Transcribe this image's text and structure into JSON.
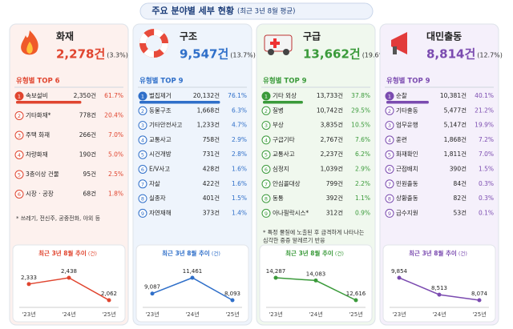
{
  "header": {
    "title": "주요 분야별 세부 현황",
    "subtitle": "(최근 3년 8월 평균)"
  },
  "panels": [
    {
      "name": "화재",
      "total": "2,278건",
      "share": "(3.3%)",
      "color": "#e0452f",
      "tint": "#fdf1ee",
      "top_label": "유형별 TOP 6",
      "rows": [
        {
          "rank": "1",
          "label": "속보설비",
          "count": "2,350건",
          "pct": "61.7%"
        },
        {
          "rank": "2",
          "label": "기타화재*",
          "count": "778건",
          "pct": "20.4%"
        },
        {
          "rank": "3",
          "label": "주택 화재",
          "count": "266건",
          "pct": "7.0%"
        },
        {
          "rank": "4",
          "label": "차량화재",
          "count": "190건",
          "pct": "5.0%"
        },
        {
          "rank": "5",
          "label": "3층이상 건물",
          "count": "95건",
          "pct": "2.5%"
        },
        {
          "rank": "6",
          "label": "시장 · 공장",
          "count": "68건",
          "pct": "1.8%"
        }
      ],
      "note": "* 쓰레기, 전신주, 공중전화, 야외 등",
      "trend": {
        "type": "line",
        "title": "최근 3년 8월 추이",
        "unit": "(건)",
        "categories": [
          "'23년",
          "'24년",
          "'25년"
        ],
        "values": [
          2333,
          2438,
          2062
        ],
        "value_labels": [
          "2,333",
          "2,438",
          "2,062"
        ]
      }
    },
    {
      "name": "구조",
      "total": "9,547건",
      "share": "(13.7%)",
      "color": "#2f6fc9",
      "tint": "#eef4fc",
      "top_label": "유형별 TOP 9",
      "rows": [
        {
          "rank": "1",
          "label": "벌집제거",
          "count": "20,132건",
          "pct": "76.1%"
        },
        {
          "rank": "2",
          "label": "동물구조",
          "count": "1,668건",
          "pct": "6.3%"
        },
        {
          "rank": "3",
          "label": "기타안전사고",
          "count": "1,233건",
          "pct": "4.7%"
        },
        {
          "rank": "4",
          "label": "교통사고",
          "count": "758건",
          "pct": "2.9%"
        },
        {
          "rank": "5",
          "label": "시건개방",
          "count": "731건",
          "pct": "2.8%"
        },
        {
          "rank": "6",
          "label": "E/V사고",
          "count": "428건",
          "pct": "1.6%"
        },
        {
          "rank": "7",
          "label": "자살",
          "count": "422건",
          "pct": "1.6%"
        },
        {
          "rank": "8",
          "label": "실종자",
          "count": "401건",
          "pct": "1.5%"
        },
        {
          "rank": "9",
          "label": "자연재해",
          "count": "373건",
          "pct": "1.4%"
        }
      ],
      "trend": {
        "type": "line",
        "title": "최근 3년 8월 추이",
        "unit": "(건)",
        "categories": [
          "'23년",
          "'24년",
          "'25년"
        ],
        "values": [
          9087,
          11461,
          8093
        ],
        "value_labels": [
          "9,087",
          "11,461",
          "8,093"
        ]
      }
    },
    {
      "name": "구급",
      "total": "13,662건",
      "share": "(19.6%)",
      "color": "#3a9a3a",
      "tint": "#f0f8ee",
      "top_label": "유형별 TOP 9",
      "rows": [
        {
          "rank": "1",
          "label": "기타 외상",
          "count": "13,733건",
          "pct": "37.8%"
        },
        {
          "rank": "2",
          "label": "질병",
          "count": "10,742건",
          "pct": "29.5%"
        },
        {
          "rank": "3",
          "label": "부상",
          "count": "3,835건",
          "pct": "10.5%"
        },
        {
          "rank": "4",
          "label": "구급기타",
          "count": "2,767건",
          "pct": "7.6%"
        },
        {
          "rank": "5",
          "label": "교통사고",
          "count": "2,237건",
          "pct": "6.2%"
        },
        {
          "rank": "6",
          "label": "심정지",
          "count": "1,039건",
          "pct": "2.9%"
        },
        {
          "rank": "7",
          "label": "안심콜대상",
          "count": "799건",
          "pct": "2.2%"
        },
        {
          "rank": "8",
          "label": "동통",
          "count": "392건",
          "pct": "1.1%"
        },
        {
          "rank": "9",
          "label": "아나필락시스*",
          "count": "312건",
          "pct": "0.9%"
        }
      ],
      "note": "* 특정 물질에 노출된 후 급격하게 나타나는 심각한 중증 알레르기 반응",
      "trend": {
        "type": "line",
        "title": "최근 3년 8월 추이",
        "unit": "(건)",
        "categories": [
          "'23년",
          "'24년",
          "'25년"
        ],
        "values": [
          14287,
          14083,
          12616
        ],
        "value_labels": [
          "14,287",
          "14,083",
          "12,616"
        ]
      }
    },
    {
      "name": "대민출동",
      "total": "8,814건",
      "share": "(12.7%)",
      "color": "#7b4bb0",
      "tint": "#f5f0fb",
      "top_label": "유형별 TOP 9",
      "rows": [
        {
          "rank": "1",
          "label": "순찰",
          "count": "10,381건",
          "pct": "40.1%"
        },
        {
          "rank": "2",
          "label": "기타출동",
          "count": "5,477건",
          "pct": "21.2%"
        },
        {
          "rank": "3",
          "label": "업무운행",
          "count": "5,147건",
          "pct": "19.9%"
        },
        {
          "rank": "4",
          "label": "훈련",
          "count": "1,868건",
          "pct": "7.2%"
        },
        {
          "rank": "5",
          "label": "화재확인",
          "count": "1,811건",
          "pct": "7.0%"
        },
        {
          "rank": "6",
          "label": "근접배치",
          "count": "390건",
          "pct": "1.5%"
        },
        {
          "rank": "7",
          "label": "민원출동",
          "count": "84건",
          "pct": "0.3%"
        },
        {
          "rank": "8",
          "label": "상황출동",
          "count": "82건",
          "pct": "0.3%"
        },
        {
          "rank": "9",
          "label": "급수지원",
          "count": "53건",
          "pct": "0.1%"
        }
      ],
      "trend": {
        "type": "line",
        "title": "최근 3년 8월 추이",
        "unit": "(건)",
        "categories": [
          "'23년",
          "'24년",
          "'25년"
        ],
        "values": [
          9854,
          8513,
          8074
        ],
        "value_labels": [
          "9,854",
          "8,513",
          "8,074"
        ]
      }
    }
  ]
}
